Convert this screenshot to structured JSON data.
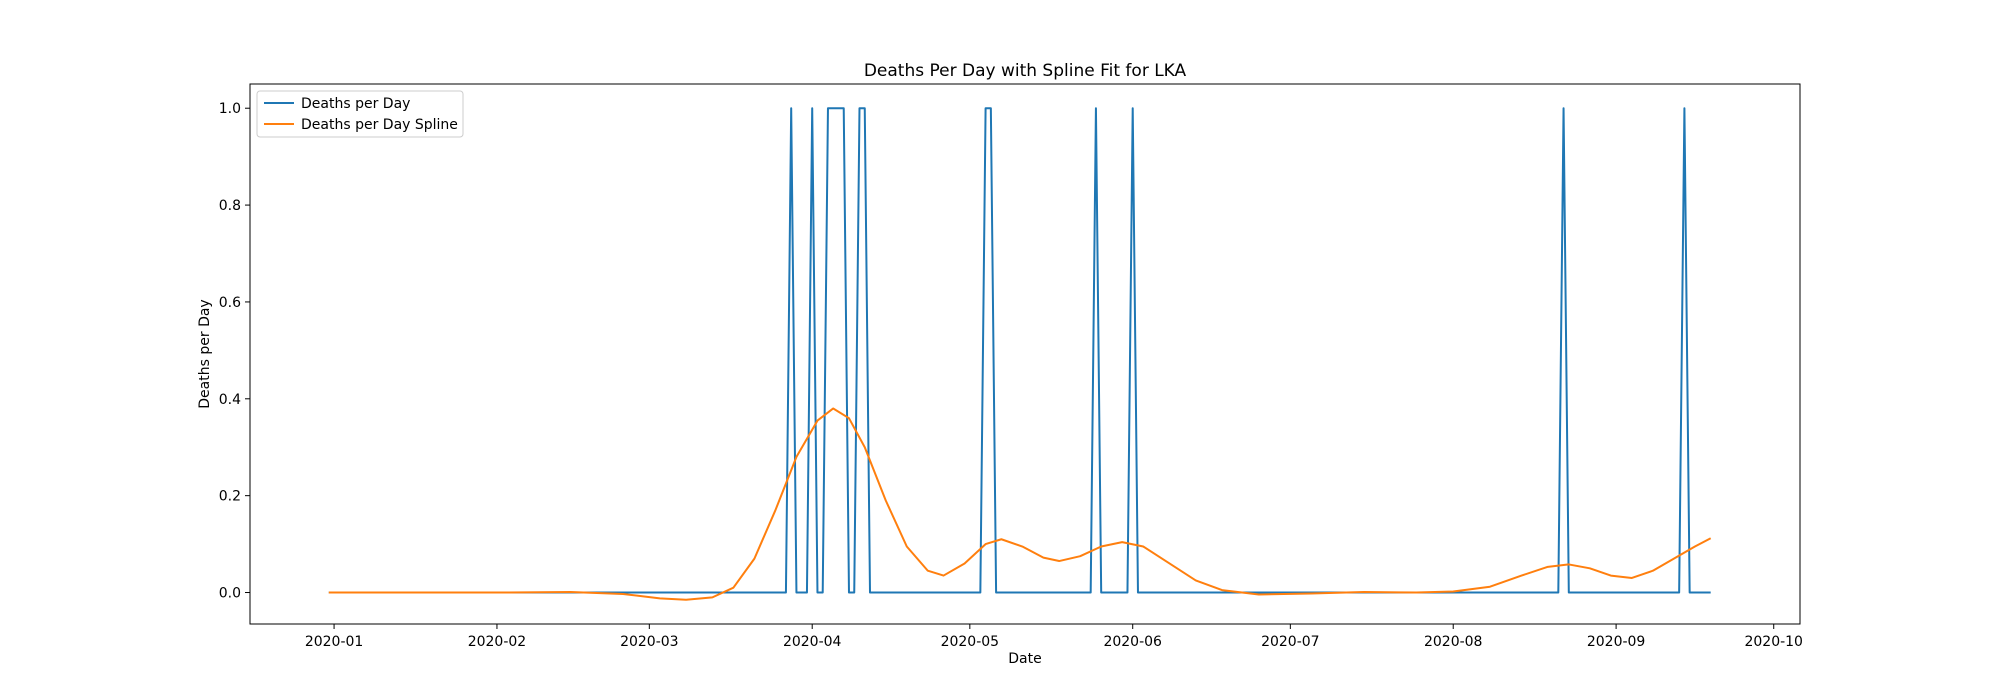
{
  "chart_data": {
    "type": "line",
    "title": "Deaths Per Day with Spline Fit for LKA",
    "xlabel": "Date",
    "ylabel": "Deaths per Day",
    "x_range": [
      "2019-12-16",
      "2020-10-06"
    ],
    "ylim": [
      -0.065,
      1.05
    ],
    "grid": false,
    "legend_position": "upper-left",
    "x_ticks": [
      "2020-01",
      "2020-02",
      "2020-03",
      "2020-04",
      "2020-05",
      "2020-06",
      "2020-07",
      "2020-08",
      "2020-09",
      "2020-10"
    ],
    "y_ticks": [
      "0.0",
      "0.2",
      "0.4",
      "0.6",
      "0.8",
      "1.0"
    ],
    "series": [
      {
        "name": "Deaths per Day",
        "color": "#1f77b4",
        "points": [
          [
            "2019-12-31",
            0
          ],
          [
            "2020-03-27",
            0
          ],
          [
            "2020-03-28",
            1
          ],
          [
            "2020-03-29",
            0
          ],
          [
            "2020-03-31",
            0
          ],
          [
            "2020-04-01",
            1
          ],
          [
            "2020-04-02",
            0
          ],
          [
            "2020-04-03",
            0
          ],
          [
            "2020-04-04",
            1
          ],
          [
            "2020-04-07",
            1
          ],
          [
            "2020-04-08",
            0
          ],
          [
            "2020-04-09",
            0
          ],
          [
            "2020-04-10",
            1
          ],
          [
            "2020-04-11",
            1
          ],
          [
            "2020-04-12",
            0
          ],
          [
            "2020-05-03",
            0
          ],
          [
            "2020-05-04",
            1
          ],
          [
            "2020-05-05",
            1
          ],
          [
            "2020-05-06",
            0
          ],
          [
            "2020-05-24",
            0
          ],
          [
            "2020-05-25",
            1
          ],
          [
            "2020-05-26",
            0
          ],
          [
            "2020-05-31",
            0
          ],
          [
            "2020-06-01",
            1
          ],
          [
            "2020-06-02",
            0
          ],
          [
            "2020-08-21",
            0
          ],
          [
            "2020-08-22",
            1
          ],
          [
            "2020-08-23",
            0
          ],
          [
            "2020-09-13",
            0
          ],
          [
            "2020-09-14",
            1
          ],
          [
            "2020-09-15",
            0
          ],
          [
            "2020-09-19",
            0
          ]
        ]
      },
      {
        "name": "Deaths per Day Spline",
        "color": "#ff7f0e",
        "points": [
          [
            "2019-12-31",
            0
          ],
          [
            "2020-01-15",
            0
          ],
          [
            "2020-02-01",
            0
          ],
          [
            "2020-02-15",
            0.001
          ],
          [
            "2020-02-25",
            -0.003
          ],
          [
            "2020-03-03",
            -0.012
          ],
          [
            "2020-03-08",
            -0.015
          ],
          [
            "2020-03-13",
            -0.01
          ],
          [
            "2020-03-17",
            0.01
          ],
          [
            "2020-03-21",
            0.07
          ],
          [
            "2020-03-25",
            0.17
          ],
          [
            "2020-03-29",
            0.28
          ],
          [
            "2020-04-02",
            0.355
          ],
          [
            "2020-04-05",
            0.38
          ],
          [
            "2020-04-08",
            0.36
          ],
          [
            "2020-04-11",
            0.3
          ],
          [
            "2020-04-15",
            0.19
          ],
          [
            "2020-04-19",
            0.095
          ],
          [
            "2020-04-23",
            0.045
          ],
          [
            "2020-04-26",
            0.035
          ],
          [
            "2020-04-30",
            0.06
          ],
          [
            "2020-05-04",
            0.1
          ],
          [
            "2020-05-07",
            0.11
          ],
          [
            "2020-05-11",
            0.095
          ],
          [
            "2020-05-15",
            0.072
          ],
          [
            "2020-05-18",
            0.065
          ],
          [
            "2020-05-22",
            0.075
          ],
          [
            "2020-05-26",
            0.095
          ],
          [
            "2020-05-30",
            0.104
          ],
          [
            "2020-06-03",
            0.095
          ],
          [
            "2020-06-08",
            0.06
          ],
          [
            "2020-06-13",
            0.025
          ],
          [
            "2020-06-18",
            0.005
          ],
          [
            "2020-06-25",
            -0.004
          ],
          [
            "2020-07-05",
            -0.002
          ],
          [
            "2020-07-15",
            0.001
          ],
          [
            "2020-07-25",
            0
          ],
          [
            "2020-08-01",
            0.002
          ],
          [
            "2020-08-08",
            0.012
          ],
          [
            "2020-08-14",
            0.035
          ],
          [
            "2020-08-19",
            0.053
          ],
          [
            "2020-08-23",
            0.058
          ],
          [
            "2020-08-27",
            0.05
          ],
          [
            "2020-08-31",
            0.035
          ],
          [
            "2020-09-04",
            0.03
          ],
          [
            "2020-09-08",
            0.045
          ],
          [
            "2020-09-12",
            0.07
          ],
          [
            "2020-09-16",
            0.095
          ],
          [
            "2020-09-19",
            0.112
          ]
        ]
      }
    ]
  }
}
